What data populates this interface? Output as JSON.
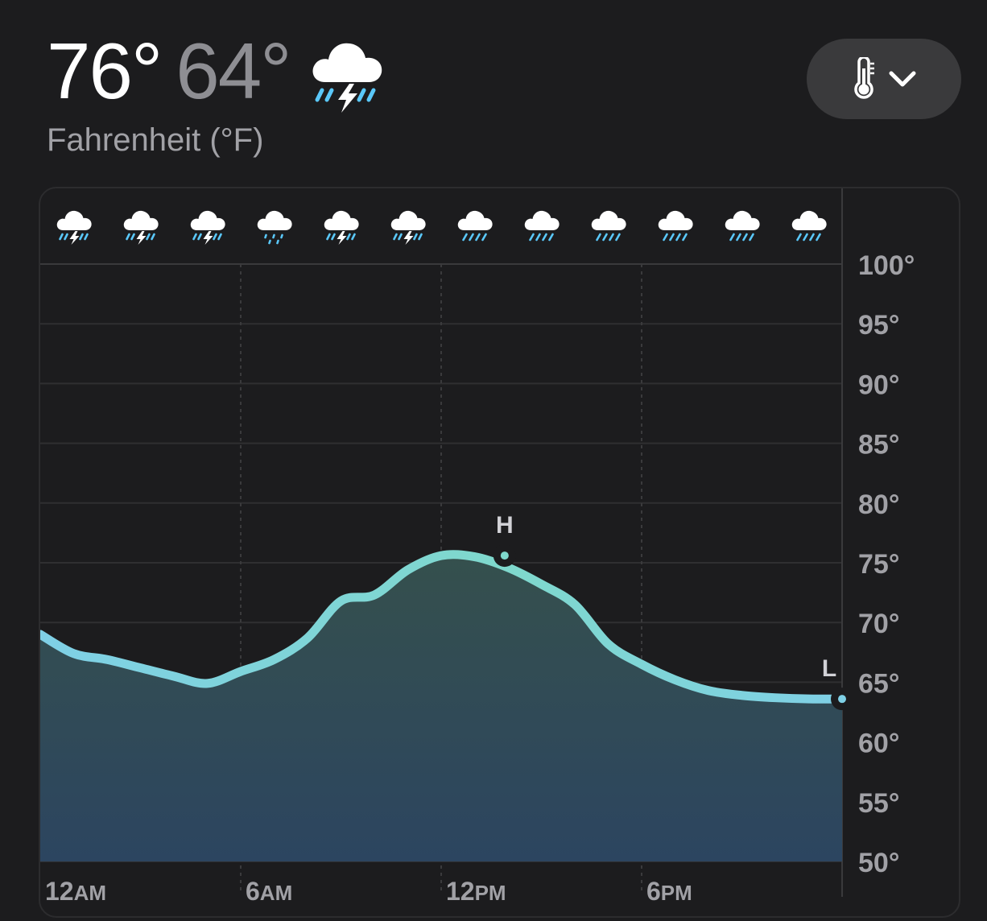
{
  "header": {
    "high": "76°",
    "low": "64°",
    "condition_icon": "cloud-bolt-rain-icon",
    "unit_label": "Fahrenheit (°F)"
  },
  "metric_selector": {
    "icon": "thermometer-icon",
    "chevron": "chevron-down-icon"
  },
  "colors": {
    "background": "#1c1c1e",
    "line_start": "#7fd0e6",
    "line_peak": "#7fd8cc",
    "area_top": "#35504d",
    "area_bottom": "#2c4560",
    "grid": "#3a3a3c",
    "rain_blue": "#5ac8fa"
  },
  "chart_data": {
    "type": "area",
    "ylim": [
      50,
      100
    ],
    "y_ticks": [
      "100°",
      "95°",
      "90°",
      "85°",
      "80°",
      "75°",
      "70°",
      "65°",
      "60°",
      "55°",
      "50°"
    ],
    "y_tick_values": [
      100,
      95,
      90,
      85,
      80,
      75,
      70,
      65,
      60,
      55,
      50
    ],
    "x_ticks": [
      {
        "hour": 0,
        "num": "12",
        "ampm": "AM"
      },
      {
        "hour": 6,
        "num": "6",
        "ampm": "AM"
      },
      {
        "hour": 12,
        "num": "12",
        "ampm": "PM"
      },
      {
        "hour": 18,
        "num": "6",
        "ampm": "PM"
      }
    ],
    "x_range_hours": [
      0,
      24
    ],
    "hours": [
      0,
      1,
      2,
      3,
      4,
      5,
      6,
      7,
      8,
      9,
      10,
      11,
      12,
      13,
      14,
      15,
      16,
      17,
      18,
      19,
      20,
      21,
      22,
      23,
      24
    ],
    "temperature": [
      69,
      67.4,
      66.9,
      66.2,
      65.5,
      64.9,
      65.9,
      66.9,
      68.7,
      71.8,
      72.3,
      74.4,
      75.6,
      75.5,
      74.6,
      73.2,
      71.5,
      68.2,
      66.5,
      65.2,
      64.3,
      63.9,
      63.7,
      63.6,
      63.6
    ],
    "high": {
      "label": "H",
      "hour": 13.9,
      "value": 75.6
    },
    "low": {
      "label": "L",
      "hour": 24,
      "value": 63.6
    },
    "hourly_conditions": [
      "cloud-bolt-rain-icon",
      "cloud-bolt-rain-icon",
      "cloud-bolt-rain-icon",
      "cloud-drizzle-icon",
      "cloud-bolt-rain-icon",
      "cloud-bolt-rain-icon",
      "cloud-rain-icon",
      "cloud-rain-icon",
      "cloud-rain-icon",
      "cloud-rain-icon",
      "cloud-rain-icon",
      "cloud-rain-icon"
    ]
  }
}
